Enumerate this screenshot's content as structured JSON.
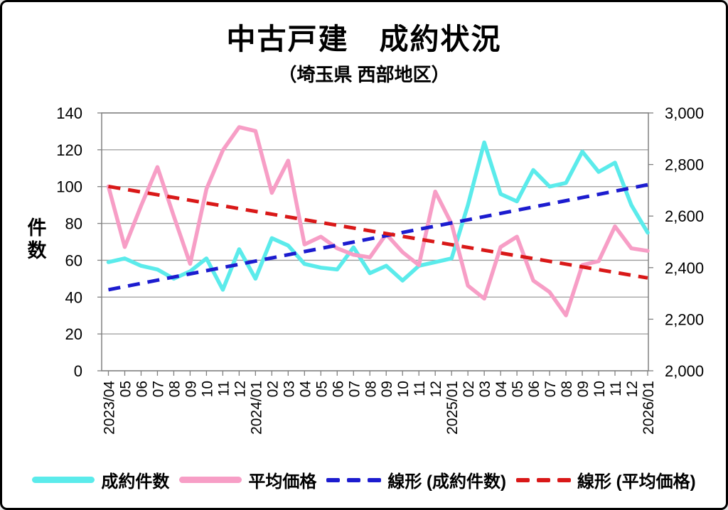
{
  "window": {
    "background": "#ffffff",
    "border_color": "#000000"
  },
  "header": {
    "title": "中古戸建　成約状況",
    "subtitle": "（埼玉県 西部地区）"
  },
  "chart_data": {
    "type": "line",
    "title": "中古戸建　成約状況",
    "subtitle": "（埼玉県 西部地区）",
    "grid": true,
    "legend_position": "bottom",
    "categories": [
      "2023/04",
      "05",
      "06",
      "07",
      "08",
      "09",
      "10",
      "11",
      "12",
      "2024/01",
      "02",
      "03",
      "04",
      "05",
      "06",
      "07",
      "08",
      "09",
      "10",
      "11",
      "12",
      "2025/01",
      "02",
      "03",
      "04",
      "05",
      "06",
      "07",
      "08",
      "09",
      "10",
      "11",
      "12",
      "2026/01"
    ],
    "left_axis": {
      "title": "件数",
      "min": 0,
      "max": 140,
      "step": 20,
      "tick_labels": [
        "0",
        "20",
        "40",
        "60",
        "80",
        "100",
        "120",
        "140"
      ]
    },
    "right_axis": {
      "title": "",
      "min": 2000,
      "max": 3000,
      "step": 200,
      "tick_labels": [
        "2,000",
        "2,200",
        "2,400",
        "2,600",
        "2,800",
        "3,000"
      ]
    },
    "series": [
      {
        "name": "成約件数",
        "axis": "left",
        "style": "solid",
        "color": "#5BEBEB",
        "values": [
          59,
          61,
          57,
          55,
          50,
          54,
          61,
          44,
          66,
          50,
          72,
          68,
          58,
          56,
          55,
          67,
          53,
          57,
          49,
          57,
          59,
          61,
          90,
          124,
          96,
          92,
          109,
          100,
          102,
          119,
          108,
          113,
          90,
          75
        ]
      },
      {
        "name": "平均価格",
        "axis": "right",
        "style": "solid",
        "color": "#F79EC6",
        "values": [
          2715,
          2480,
          2640,
          2790,
          2600,
          2415,
          2705,
          2855,
          2945,
          2930,
          2690,
          2815,
          2490,
          2520,
          2475,
          2450,
          2440,
          2530,
          2460,
          2410,
          2695,
          2570,
          2330,
          2280,
          2480,
          2520,
          2350,
          2305,
          2215,
          2410,
          2425,
          2560,
          2475,
          2465
        ]
      },
      {
        "name": "線形 (成約件数)",
        "axis": "left",
        "style": "dashed",
        "color": "#1C1CCF",
        "trend_endpoints": [
          44,
          101
        ]
      },
      {
        "name": "線形 (平均価格)",
        "axis": "right",
        "style": "dashed",
        "color": "#D91818",
        "trend_endpoints": [
          2715,
          2360
        ]
      }
    ],
    "grid_color": "#9b9b9b",
    "axis_frame_color": "#808080",
    "tick_label_color": "#000000"
  }
}
